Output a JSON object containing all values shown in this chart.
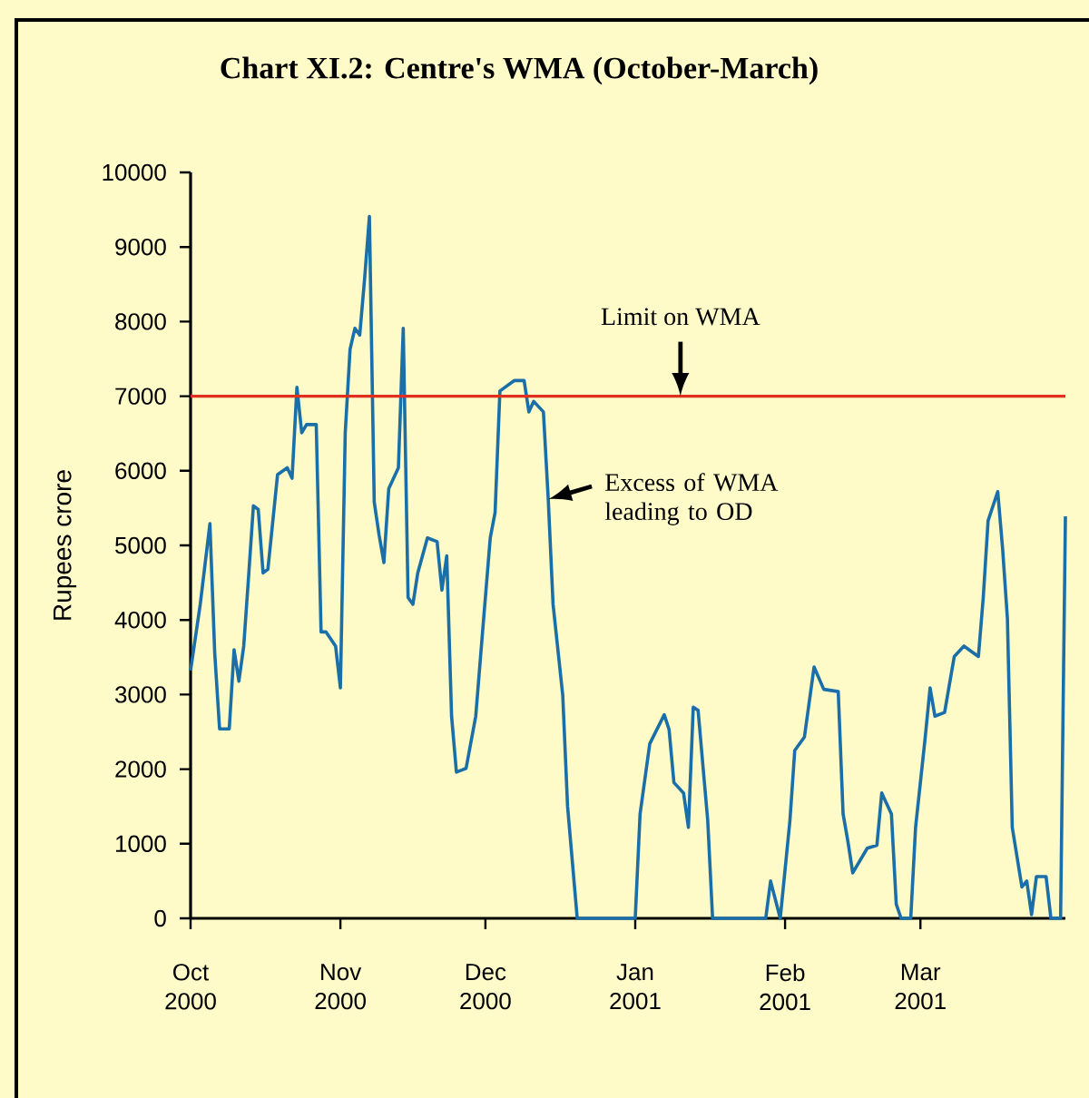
{
  "chart_data": {
    "type": "line",
    "title": "Chart XI.2: Centre's WMA (October-March)",
    "ylabel": "Rupees crore",
    "x": [
      "2000-10-01",
      "2000-10-03",
      "2000-10-05",
      "2000-10-06",
      "2000-10-07",
      "2000-10-09",
      "2000-10-10",
      "2000-10-11",
      "2000-10-12",
      "2000-10-13",
      "2000-10-14",
      "2000-10-15",
      "2000-10-16",
      "2000-10-17",
      "2000-10-19",
      "2000-10-21",
      "2000-10-22",
      "2000-10-23",
      "2000-10-24",
      "2000-10-25",
      "2000-10-27",
      "2000-10-28",
      "2000-10-29",
      "2000-10-31",
      "2000-11-01",
      "2000-11-02",
      "2000-11-03",
      "2000-11-04",
      "2000-11-05",
      "2000-11-06",
      "2000-11-07",
      "2000-11-08",
      "2000-11-09",
      "2000-11-10",
      "2000-11-11",
      "2000-11-13",
      "2000-11-14",
      "2000-11-15",
      "2000-11-16",
      "2000-11-17",
      "2000-11-19",
      "2000-11-21",
      "2000-11-22",
      "2000-11-23",
      "2000-11-24",
      "2000-11-25",
      "2000-11-27",
      "2000-11-29",
      "2000-11-30",
      "2000-12-02",
      "2000-12-03",
      "2000-12-04",
      "2000-12-07",
      "2000-12-09",
      "2000-12-10",
      "2000-12-11",
      "2000-12-13",
      "2000-12-14",
      "2000-12-15",
      "2000-12-17",
      "2000-12-18",
      "2000-12-20",
      "2001-01-01",
      "2001-01-02",
      "2001-01-04",
      "2001-01-07",
      "2001-01-08",
      "2001-01-09",
      "2001-01-11",
      "2001-01-12",
      "2001-01-13",
      "2001-01-14",
      "2001-01-16",
      "2001-01-17",
      "2001-01-28",
      "2001-01-29",
      "2001-01-31",
      "2001-02-02",
      "2001-02-03",
      "2001-02-05",
      "2001-02-07",
      "2001-02-09",
      "2001-02-12",
      "2001-02-13",
      "2001-02-14",
      "2001-02-15",
      "2001-02-18",
      "2001-02-20",
      "2001-02-21",
      "2001-02-23",
      "2001-02-24",
      "2001-02-25",
      "2001-02-27",
      "2001-02-28",
      "2001-03-02",
      "2001-03-03",
      "2001-03-04",
      "2001-03-06",
      "2001-03-08",
      "2001-03-10",
      "2001-03-13",
      "2001-03-14",
      "2001-03-15",
      "2001-03-17",
      "2001-03-18",
      "2001-03-19",
      "2001-03-20",
      "2001-03-22",
      "2001-03-23",
      "2001-03-24",
      "2001-03-25",
      "2001-03-27",
      "2001-03-28",
      "2001-03-30",
      "2001-03-31"
    ],
    "series": [
      {
        "color": "#1a6fa8",
        "values": [
          3320,
          4210,
          5290,
          3550,
          2540,
          2540,
          3600,
          3180,
          3650,
          4580,
          5530,
          5480,
          4630,
          4680,
          5950,
          6040,
          5900,
          7120,
          6510,
          6620,
          6620,
          3840,
          3840,
          3650,
          3090,
          6510,
          7630,
          7910,
          7820,
          8570,
          9410,
          5580,
          5140,
          4770,
          5760,
          6040,
          7910,
          4300,
          4210,
          4630,
          5100,
          5050,
          4400,
          4860,
          2710,
          1960,
          2010,
          2710,
          3510,
          5100,
          5440,
          7070,
          7210,
          7210,
          6790,
          6930,
          6790,
          5620,
          4210,
          2990,
          1500,
          0,
          0,
          1400,
          2340,
          2730,
          2530,
          1820,
          1680,
          1220,
          2830,
          2790,
          1310,
          0,
          0,
          500,
          0,
          1310,
          2250,
          2430,
          3370,
          3070,
          3040,
          1400,
          1030,
          610,
          940,
          980,
          1680,
          1400,
          190,
          0,
          0,
          1220,
          2430,
          3090,
          2710,
          2760,
          3510,
          3650,
          3510,
          4300,
          5330,
          5720,
          4960,
          4020,
          1220,
          420,
          500,
          50,
          560,
          560,
          0,
          0,
          5390
        ]
      }
    ],
    "xlim": [
      "2000-10-01",
      "2001-03-31"
    ],
    "xticks": [
      {
        "value": "2000-10-01",
        "label": "Oct 2000"
      },
      {
        "value": "2000-11-01",
        "label": "Nov 2000"
      },
      {
        "value": "2000-12-01",
        "label": "Dec 2000"
      },
      {
        "value": "2001-01-01",
        "label": "Jan 2001"
      },
      {
        "value": "2001-02-01",
        "label": "Feb 2001"
      },
      {
        "value": "2001-03-01",
        "label": "Mar 2001"
      }
    ],
    "ylim": [
      0,
      10000
    ],
    "yticks": [
      0,
      1000,
      2000,
      3000,
      4000,
      5000,
      6000,
      7000,
      8000,
      9000,
      10000
    ],
    "ref_lines": [
      {
        "axis": "y",
        "value": 7000,
        "label": "Limit on WMA",
        "color": "#e03020"
      }
    ],
    "annotations": [
      {
        "text": "Excess of WMA leading to OD",
        "x": "2000-12-14",
        "y": 5620
      }
    ],
    "grid": false,
    "marker": "none",
    "line_style": "solid"
  }
}
